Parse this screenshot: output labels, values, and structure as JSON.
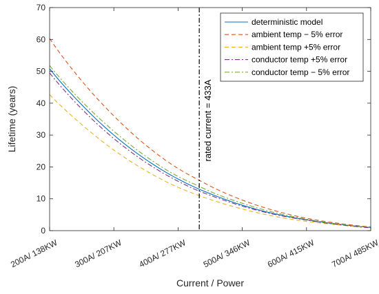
{
  "chart_data": {
    "type": "line",
    "xlabel": "Current / Power",
    "ylabel": "Lifetime (years)",
    "x_ticks": [
      200,
      300,
      400,
      500,
      600,
      700
    ],
    "x_tick_labels": [
      "200A/ 138KW",
      "300A/ 207KW",
      "400A/ 277KW",
      "500A/ 346KW",
      "600A/ 415KW",
      "700A/ 485KW"
    ],
    "xlim": [
      200,
      700
    ],
    "ylim": [
      0,
      70
    ],
    "y_ticks": [
      0,
      10,
      20,
      30,
      40,
      50,
      60,
      70
    ],
    "grid": false,
    "legend_position": "top-right",
    "x": [
      200,
      250,
      300,
      350,
      400,
      433,
      450,
      500,
      550,
      600,
      650,
      700
    ],
    "series": [
      {
        "name": "deterministic model",
        "color": "#0072BD",
        "dash": "solid",
        "values": [
          50.8,
          39.5,
          30.0,
          22.3,
          16.2,
          13.0,
          11.6,
          8.0,
          5.3,
          3.4,
          2.0,
          1.0
        ]
      },
      {
        "name": "ambient temp − 5% error",
        "color": "#D95319",
        "dash": "dashed",
        "values": [
          60.3,
          47.0,
          36.0,
          26.8,
          19.5,
          15.8,
          14.0,
          9.6,
          6.3,
          3.9,
          2.3,
          1.2
        ]
      },
      {
        "name": "ambient temp +5% error",
        "color": "#EDB120",
        "dash": "dashed",
        "values": [
          42.7,
          33.3,
          25.3,
          18.8,
          13.6,
          11.0,
          9.8,
          6.8,
          4.5,
          2.9,
          1.8,
          0.9
        ]
      },
      {
        "name": "conductor temp +5% error",
        "color": "#7E2F8E",
        "dash": "dashdot",
        "values": [
          49.5,
          38.2,
          28.9,
          21.4,
          15.5,
          12.4,
          11.1,
          7.7,
          5.1,
          3.3,
          1.9,
          0.9
        ]
      },
      {
        "name": "conductor temp − 5% error",
        "color": "#77AC30",
        "dash": "dashdot",
        "values": [
          51.8,
          40.6,
          31.2,
          23.3,
          17.0,
          13.9,
          12.3,
          8.6,
          5.7,
          3.6,
          2.1,
          1.1
        ]
      }
    ],
    "vline": {
      "x": 433,
      "label": "rated current = 433A",
      "color": "#000000",
      "dash": "dashdot"
    }
  }
}
